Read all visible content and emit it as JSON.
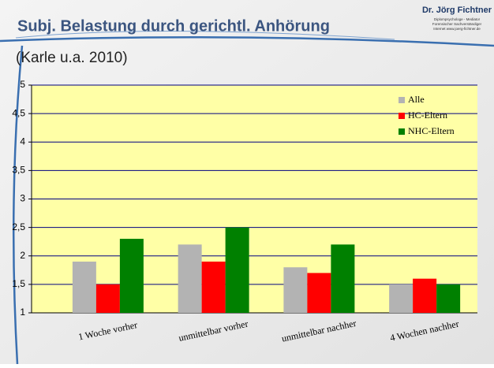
{
  "header": {
    "title": "Subj. Belastung durch gerichtl. Anhörung",
    "subtitle": "(Karle u.a. 2010)",
    "logo": {
      "name": "Dr. Jörg Fichtner",
      "lines": [
        "Diplompsychologe  -  Mediator",
        "Forensischer Sachverständiger",
        "Internet www.joerg-fichtner.de"
      ]
    }
  },
  "chart_data": {
    "type": "bar",
    "categories": [
      "1 Woche vorher",
      "unmittelbar vorher",
      "unmittelbar nachher",
      "4 Wochen nachher"
    ],
    "series": [
      {
        "name": "Alle",
        "color": "#b3b3b3",
        "values": [
          1.9,
          2.2,
          1.8,
          1.5
        ]
      },
      {
        "name": "HC-Eltern",
        "color": "#ff0000",
        "values": [
          1.5,
          1.9,
          1.7,
          1.6
        ]
      },
      {
        "name": "NHC-Eltern",
        "color": "#008000",
        "values": [
          2.3,
          2.5,
          2.2,
          1.5
        ]
      }
    ],
    "ylim": [
      1,
      5
    ],
    "yticks": [
      1,
      {
        "value": 1.5,
        "label": "1,5"
      },
      2,
      {
        "value": 2.5,
        "label": "2,5"
      },
      3,
      {
        "value": 3.5,
        "label": "3,5"
      },
      4,
      {
        "value": 4.5,
        "label": "4,5"
      },
      5
    ],
    "grid": true,
    "legend": "top-right"
  }
}
